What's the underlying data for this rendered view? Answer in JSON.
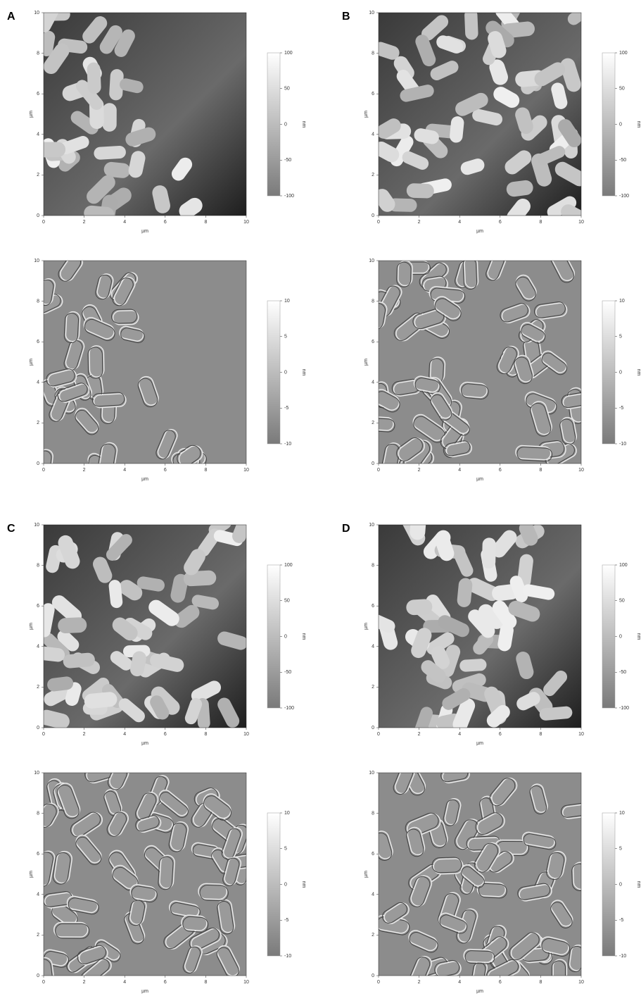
{
  "panels": [
    {
      "label": "A",
      "images": [
        {
          "x_label": "µm",
          "y_label": "µm",
          "x_ticks": [
            0,
            2,
            4,
            6,
            8,
            10
          ],
          "y_ticks": [
            0,
            2,
            4,
            6,
            8,
            10
          ],
          "colorbar_ticks": [
            100,
            50,
            0,
            -50,
            -100
          ],
          "colorbar_unit": "nm"
        },
        {
          "x_label": "µm",
          "y_label": "µm",
          "x_ticks": [
            0,
            2,
            4,
            6,
            8,
            10
          ],
          "y_ticks": [
            0,
            2,
            4,
            6,
            8,
            10
          ],
          "colorbar_ticks": [
            10,
            5,
            0,
            -5,
            -10
          ],
          "colorbar_unit": "nm"
        }
      ]
    },
    {
      "label": "B",
      "images": [
        {
          "x_label": "µm",
          "y_label": "µm",
          "x_ticks": [
            0,
            2,
            4,
            6,
            8,
            10
          ],
          "y_ticks": [
            0,
            2,
            4,
            6,
            8,
            10
          ],
          "colorbar_ticks": [
            100,
            50,
            0,
            -50,
            -100
          ],
          "colorbar_unit": "nm"
        },
        {
          "x_label": "µm",
          "y_label": "µm",
          "x_ticks": [
            0,
            2,
            4,
            6,
            8,
            10
          ],
          "y_ticks": [
            0,
            2,
            4,
            6,
            8,
            10
          ],
          "colorbar_ticks": [
            10,
            5,
            0,
            -5,
            -10
          ],
          "colorbar_unit": "nm"
        }
      ]
    },
    {
      "label": "C",
      "images": [
        {
          "x_label": "µm",
          "y_label": "µm",
          "x_ticks": [
            0,
            2,
            4,
            6,
            8,
            10
          ],
          "y_ticks": [
            0,
            2,
            4,
            6,
            8,
            10
          ],
          "colorbar_ticks": [
            100,
            50,
            0,
            -50,
            -100
          ],
          "colorbar_unit": "nm"
        },
        {
          "x_label": "µm",
          "y_label": "µm",
          "x_ticks": [
            0,
            2,
            4,
            6,
            8,
            10
          ],
          "y_ticks": [
            0,
            2,
            4,
            6,
            8,
            10
          ],
          "colorbar_ticks": [
            10,
            5,
            0,
            -5,
            -10
          ],
          "colorbar_unit": "nm"
        }
      ]
    },
    {
      "label": "D",
      "images": [
        {
          "x_label": "µm",
          "y_label": "µm",
          "x_ticks": [
            0,
            2,
            4,
            6,
            8,
            10
          ],
          "y_ticks": [
            0,
            2,
            4,
            6,
            8,
            10
          ],
          "colorbar_ticks": [
            100,
            50,
            0,
            -50,
            -100
          ],
          "colorbar_unit": "nm"
        },
        {
          "x_label": "µm",
          "y_label": "µm",
          "x_ticks": [
            0,
            2,
            4,
            6,
            8,
            10
          ],
          "y_ticks": [
            0,
            2,
            4,
            6,
            8,
            10
          ],
          "colorbar_ticks": [
            10,
            5,
            0,
            -5,
            -10
          ],
          "colorbar_unit": "nm"
        }
      ]
    }
  ]
}
